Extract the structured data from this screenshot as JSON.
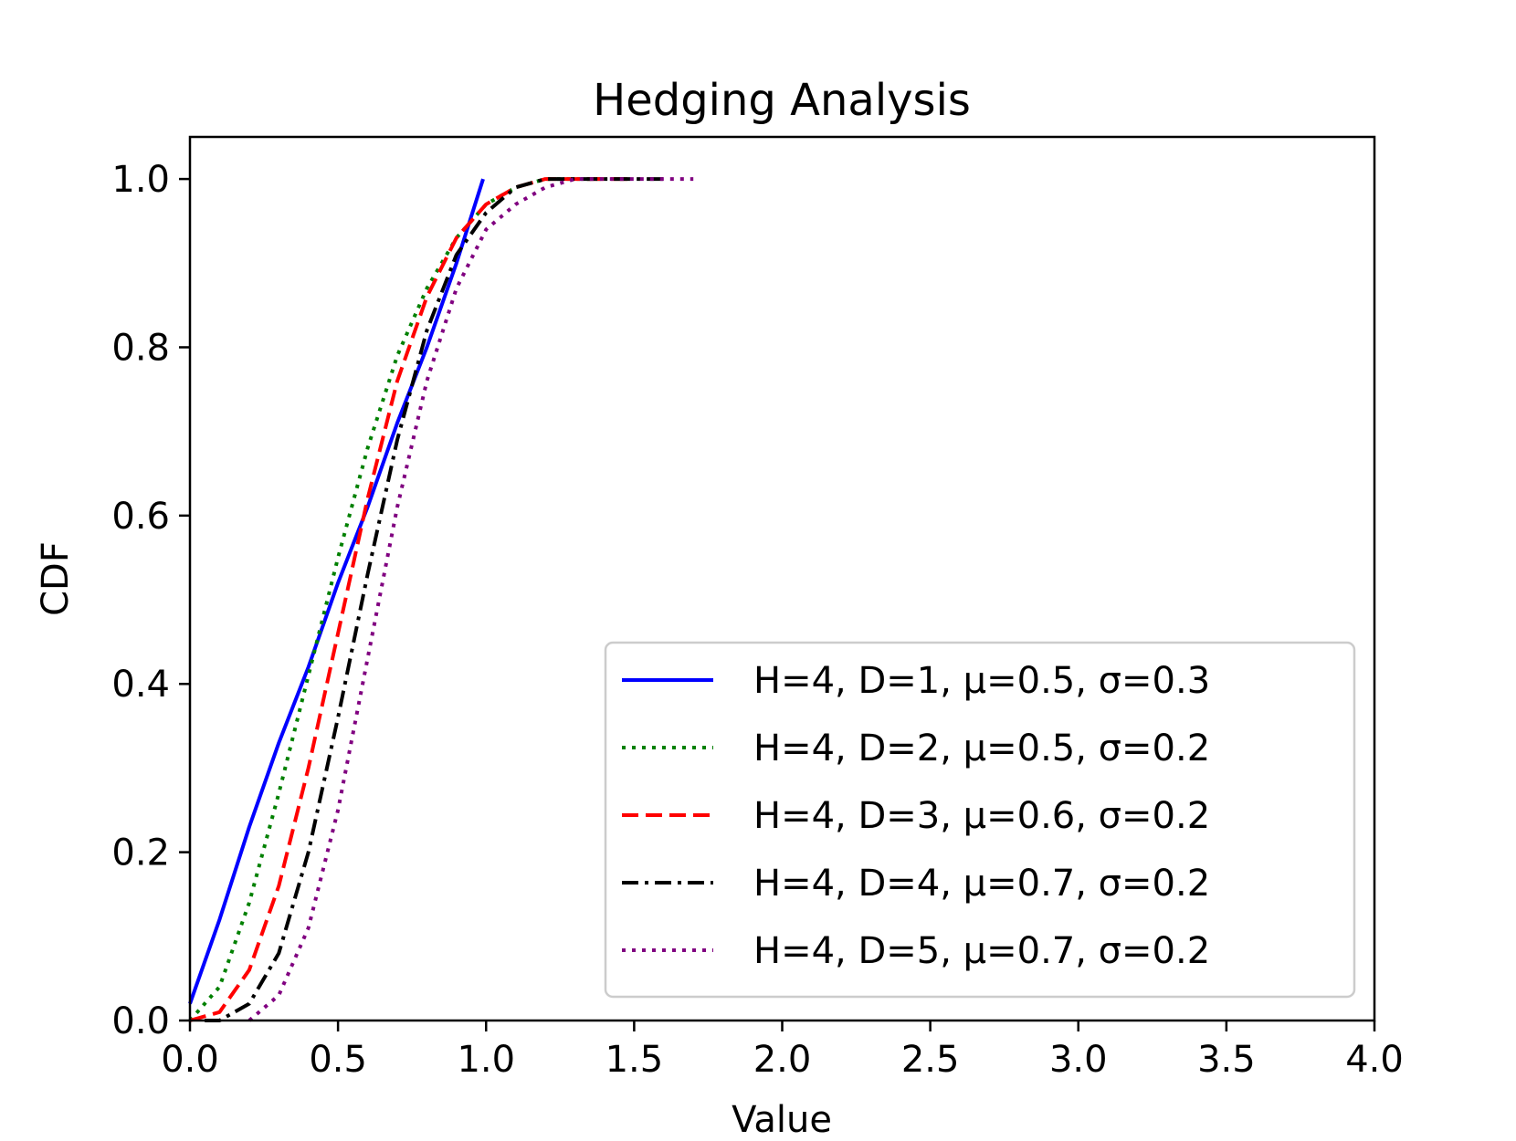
{
  "chart_data": {
    "type": "line",
    "title": "Hedging Analysis",
    "xlabel": "Value",
    "ylabel": "CDF",
    "xlim": [
      0,
      4
    ],
    "ylim": [
      0,
      1.05
    ],
    "xticks": [
      0.0,
      0.5,
      1.0,
      1.5,
      2.0,
      2.5,
      3.0,
      3.5,
      4.0
    ],
    "xtick_labels": [
      "0.0",
      "0.5",
      "1.0",
      "1.5",
      "2.0",
      "2.5",
      "3.0",
      "3.5",
      "4.0"
    ],
    "yticks": [
      0.0,
      0.2,
      0.4,
      0.6,
      0.8,
      1.0
    ],
    "ytick_labels": [
      "0.0",
      "0.2",
      "0.4",
      "0.6",
      "0.8",
      "1.0"
    ],
    "grid": false,
    "legend_position": "lower-right",
    "series": [
      {
        "name": "H=4, D=1, μ=0.5, σ=0.3",
        "color": "#0000ff",
        "linestyle": "solid",
        "x": [
          0.0,
          0.1,
          0.2,
          0.3,
          0.4,
          0.5,
          0.6,
          0.7,
          0.8,
          0.9,
          0.99
        ],
        "y": [
          0.02,
          0.12,
          0.23,
          0.33,
          0.42,
          0.52,
          0.61,
          0.71,
          0.8,
          0.9,
          1.0
        ]
      },
      {
        "name": "H=4, D=2, μ=0.5, σ=0.2",
        "color": "#008000",
        "linestyle": "dotted",
        "x": [
          0.0,
          0.1,
          0.2,
          0.3,
          0.4,
          0.5,
          0.6,
          0.7,
          0.8,
          0.9,
          1.0,
          1.1,
          1.2,
          1.3,
          1.4
        ],
        "y": [
          0.0,
          0.04,
          0.14,
          0.27,
          0.41,
          0.55,
          0.68,
          0.79,
          0.87,
          0.93,
          0.97,
          0.99,
          1.0,
          1.0,
          1.0
        ]
      },
      {
        "name": "H=4, D=3, μ=0.6, σ=0.2",
        "color": "#ff0000",
        "linestyle": "dashed",
        "x": [
          0.0,
          0.1,
          0.2,
          0.3,
          0.4,
          0.5,
          0.6,
          0.7,
          0.8,
          0.9,
          1.0,
          1.1,
          1.2,
          1.3,
          1.4,
          1.5
        ],
        "y": [
          0.0,
          0.01,
          0.06,
          0.16,
          0.3,
          0.46,
          0.62,
          0.76,
          0.86,
          0.93,
          0.97,
          0.99,
          1.0,
          1.0,
          1.0,
          1.0
        ]
      },
      {
        "name": "H=4, D=4, μ=0.7, σ=0.2",
        "color": "#000000",
        "linestyle": "dashdot",
        "x": [
          0.05,
          0.1,
          0.2,
          0.3,
          0.4,
          0.5,
          0.6,
          0.7,
          0.8,
          0.9,
          1.0,
          1.1,
          1.2,
          1.3,
          1.4,
          1.5,
          1.6
        ],
        "y": [
          0.0,
          0.0,
          0.02,
          0.08,
          0.2,
          0.36,
          0.53,
          0.69,
          0.82,
          0.91,
          0.96,
          0.99,
          1.0,
          1.0,
          1.0,
          1.0,
          1.0
        ]
      },
      {
        "name": "H=4, D=5, μ=0.7, σ=0.2",
        "color": "#800080",
        "linestyle": "dotted",
        "x": [
          0.2,
          0.3,
          0.4,
          0.5,
          0.6,
          0.7,
          0.8,
          0.9,
          1.0,
          1.1,
          1.2,
          1.3,
          1.4,
          1.5,
          1.6,
          1.7
        ],
        "y": [
          0.0,
          0.03,
          0.11,
          0.25,
          0.43,
          0.61,
          0.76,
          0.87,
          0.94,
          0.97,
          0.99,
          1.0,
          1.0,
          1.0,
          1.0,
          1.0
        ]
      }
    ]
  }
}
